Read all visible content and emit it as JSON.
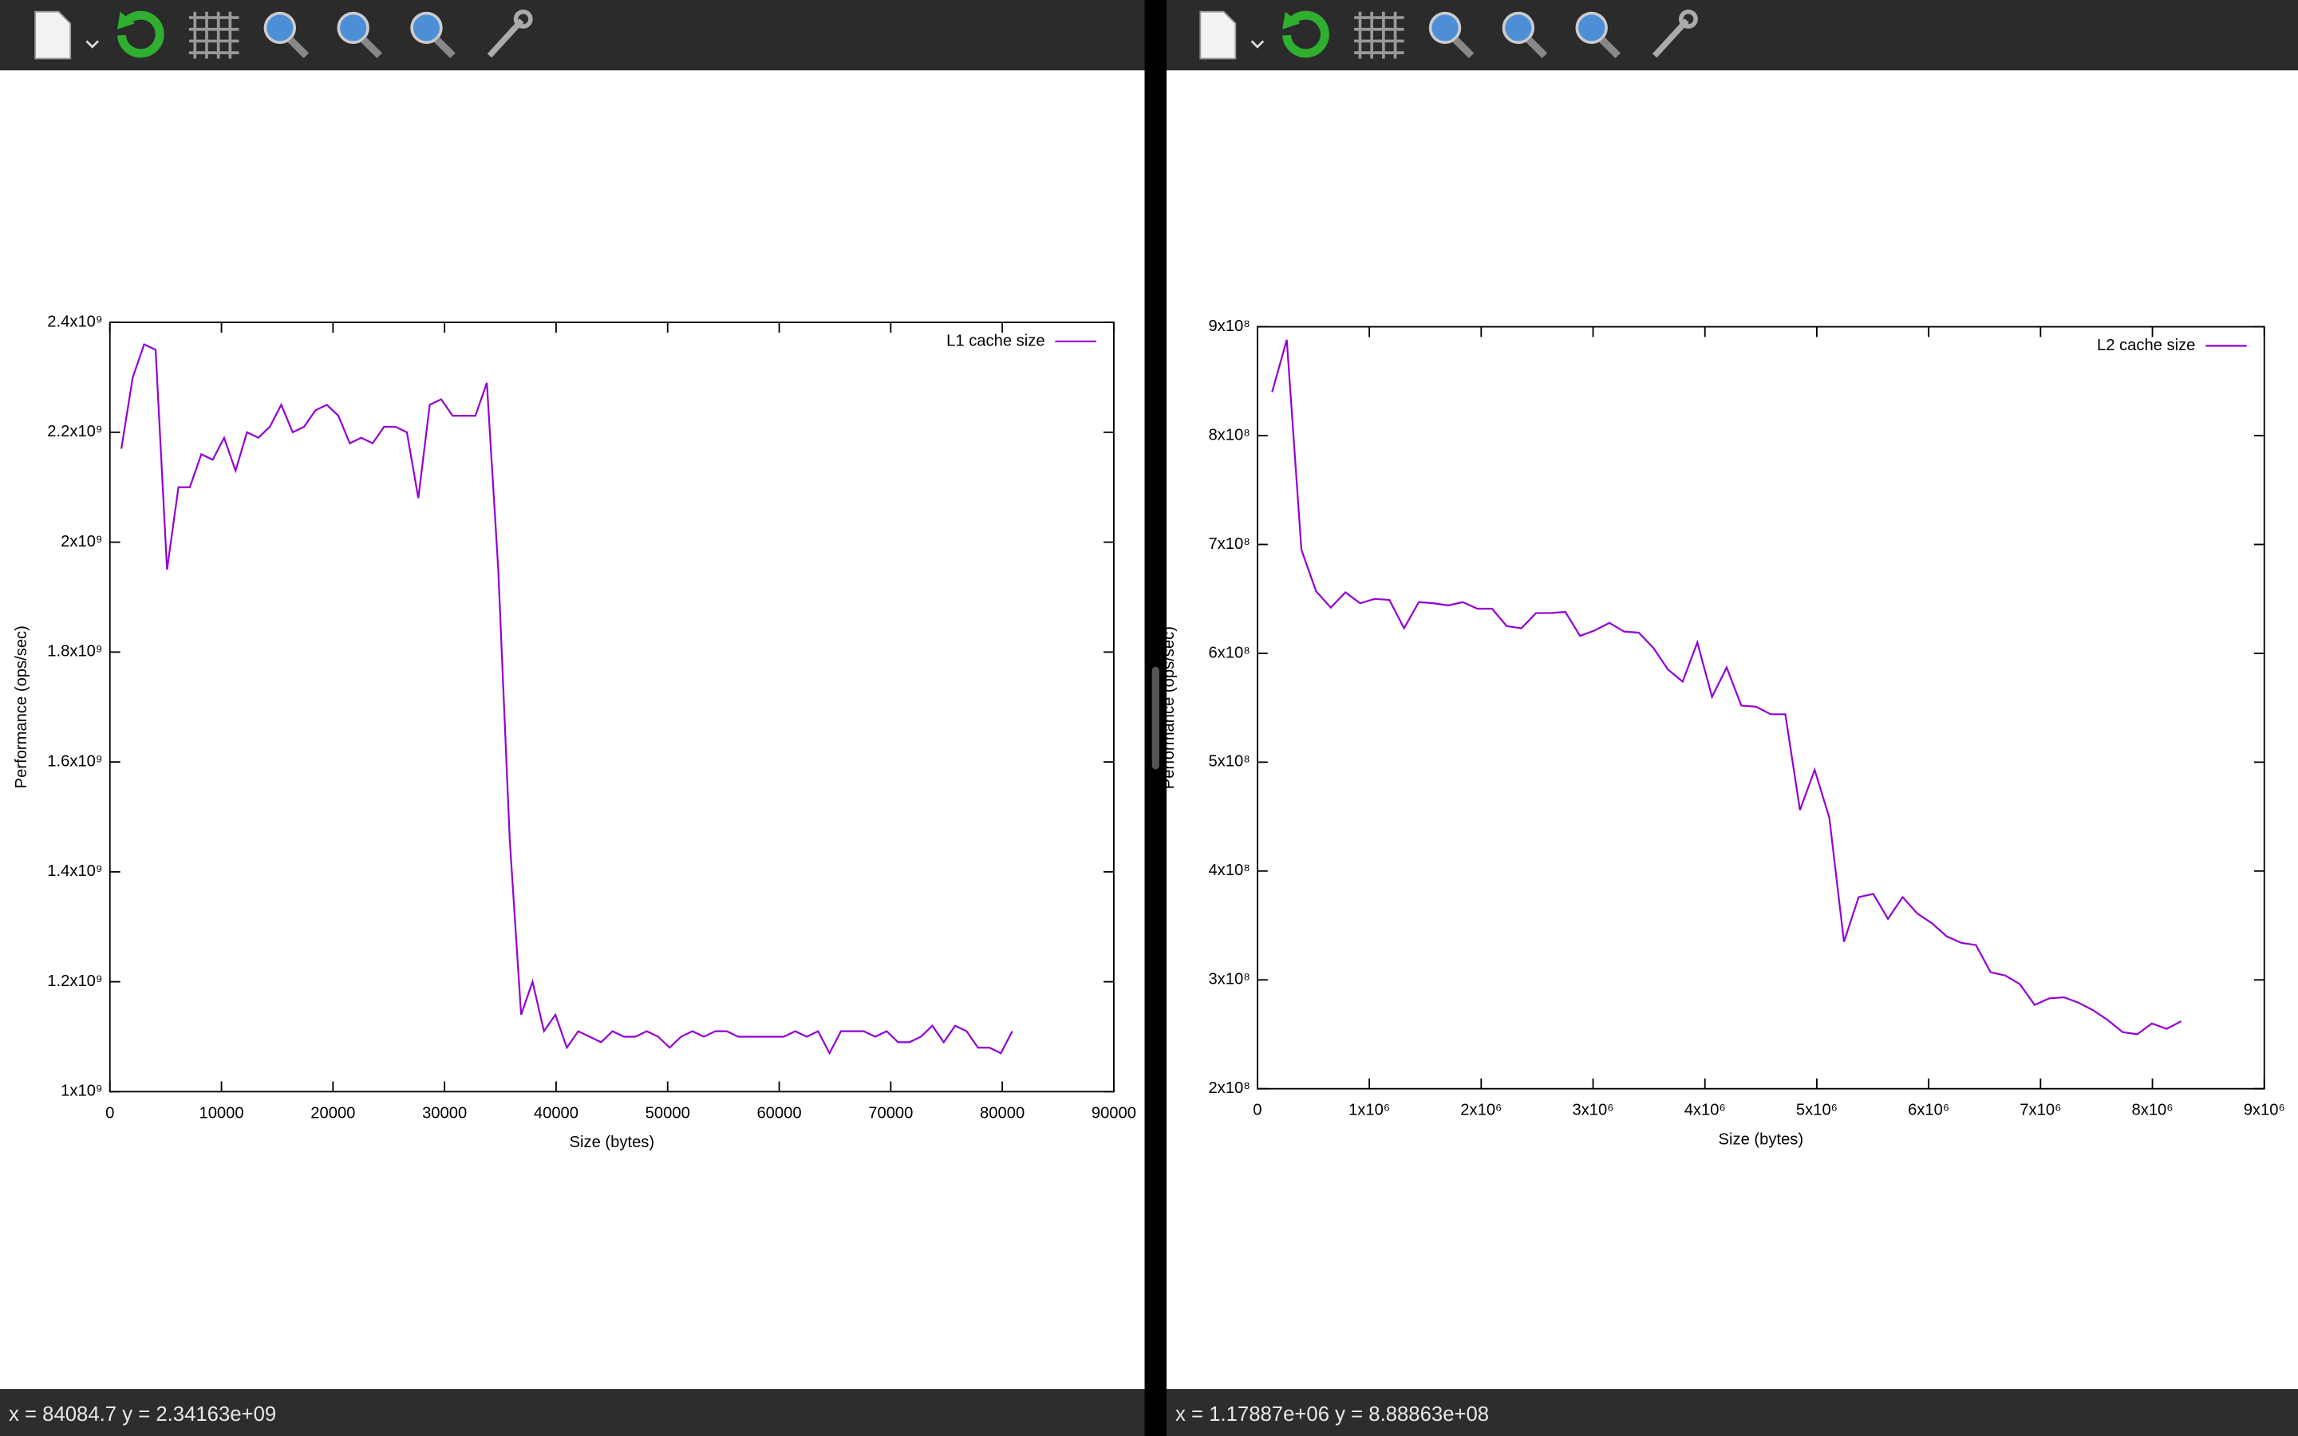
{
  "chart_data": [
    {
      "type": "line",
      "xlabel": "Size (bytes)",
      "ylabel": "Performance (ops/sec)",
      "x": [
        1024,
        2048,
        3072,
        4096,
        5120,
        6144,
        7168,
        8192,
        9216,
        10240,
        11264,
        12288,
        13312,
        14336,
        15360,
        16384,
        17408,
        18432,
        19456,
        20480,
        21504,
        22528,
        23552,
        24576,
        25600,
        26624,
        27648,
        28672,
        29696,
        30720,
        31744,
        32768,
        33792,
        34816,
        35840,
        36864,
        37888,
        38912,
        39936,
        40960,
        41984,
        43008,
        44032,
        45056,
        46080,
        47104,
        48128,
        49152,
        50176,
        51200,
        52224,
        53248,
        54272,
        55296,
        56320,
        57344,
        58368,
        59392,
        60416,
        61440,
        62464,
        63488,
        64512,
        65536,
        66560,
        67584,
        68608,
        69632,
        70656,
        71680,
        72704,
        73728,
        74752,
        75776,
        76800,
        77824,
        78848,
        79872,
        80896
      ],
      "series": [
        {
          "name": "L1 cache size",
          "color": "#9400d3",
          "values": [
            2170000000.0,
            2300000000.0,
            2360000000.0,
            2350000000.0,
            1950000000.0,
            2100000000.0,
            2100000000.0,
            2160000000.0,
            2150000000.0,
            2190000000.0,
            2130000000.0,
            2200000000.0,
            2190000000.0,
            2210000000.0,
            2250000000.0,
            2200000000.0,
            2210000000.0,
            2240000000.0,
            2250000000.0,
            2230000000.0,
            2180000000.0,
            2190000000.0,
            2180000000.0,
            2210000000.0,
            2210000000.0,
            2200000000.0,
            2080000000.0,
            2250000000.0,
            2260000000.0,
            2230000000.0,
            2230000000.0,
            2230000000.0,
            2290000000.0,
            1950000000.0,
            1460000000.0,
            1140000000.0,
            1200000000.0,
            1110000000.0,
            1140000000.0,
            1080000000.0,
            1110000000.0,
            1100000000.0,
            1090000000.0,
            1110000000.0,
            1100000000.0,
            1100000000.0,
            1110000000.0,
            1100000000.0,
            1080000000.0,
            1100000000.0,
            1110000000.0,
            1100000000.0,
            1110000000.0,
            1110000000.0,
            1100000000.0,
            1100000000.0,
            1100000000.0,
            1100000000.0,
            1100000000.0,
            1110000000.0,
            1100000000.0,
            1110000000.0,
            1070000000.0,
            1110000000.0,
            1110000000.0,
            1110000000.0,
            1100000000.0,
            1110000000.0,
            1090000000.0,
            1090000000.0,
            1100000000.0,
            1120000000.0,
            1090000000.0,
            1120000000.0,
            1110000000.0,
            1080000000.0,
            1080000000.0,
            1070000000.0,
            1110000000.0
          ]
        }
      ],
      "xlim": [
        0,
        90000
      ],
      "xticks": [
        0,
        10000,
        20000,
        30000,
        40000,
        50000,
        60000,
        70000,
        80000,
        90000
      ],
      "ylim": [
        1000000000.0,
        2400000000.0
      ],
      "yticks": [
        {
          "value": 1000000000.0,
          "label": "1x10⁹"
        },
        {
          "value": 1200000000.0,
          "label": "1.2x10⁹"
        },
        {
          "value": 1400000000.0,
          "label": "1.4x10⁹"
        },
        {
          "value": 1600000000.0,
          "label": "1.6x10⁹"
        },
        {
          "value": 1800000000.0,
          "label": "1.8x10⁹"
        },
        {
          "value": 2000000000.0,
          "label": "2x10⁹"
        },
        {
          "value": 2200000000.0,
          "label": "2.2x10⁹"
        },
        {
          "value": 2400000000.0,
          "label": "2.4x10⁹"
        }
      ],
      "legend": "top-right",
      "grid": false
    },
    {
      "type": "line",
      "xlabel": "Size (bytes)",
      "ylabel": "Performance (ops/sec)",
      "x": [
        131072,
        262144,
        393216,
        524288,
        655360,
        786432,
        917504,
        1048576,
        1179648,
        1310720,
        1441792,
        1572864,
        1703936,
        1835008,
        1966080,
        2097152,
        2228224,
        2359296,
        2490368,
        2621440,
        2752512,
        2883584,
        3014656,
        3145728,
        3276800,
        3407872,
        3538944,
        3670016,
        3801088,
        3932160,
        4063232,
        4194304,
        4325376,
        4456448,
        4587520,
        4718592,
        4849664,
        4980736,
        5111808,
        5242880,
        5373952,
        5505024,
        5636096,
        5767168,
        5898240,
        6029312,
        6160384,
        6291456,
        6422528,
        6553600,
        6684672,
        6815744,
        6946816,
        7077888,
        7208960,
        7340032,
        7471104,
        7602176,
        7733248,
        7864320,
        7995392,
        8126464,
        8257536
      ],
      "series": [
        {
          "name": "L2 cache size",
          "color": "#9400d3",
          "values": [
            840000000.0,
            888000000.0,
            695000000.0,
            657000000.0,
            642000000.0,
            656000000.0,
            646000000.0,
            650000000.0,
            649000000.0,
            623000000.0,
            647000000.0,
            646000000.0,
            644000000.0,
            647000000.0,
            641000000.0,
            641000000.0,
            625000000.0,
            623000000.0,
            637000000.0,
            637000000.0,
            638000000.0,
            616000000.0,
            621000000.0,
            628000000.0,
            620000000.0,
            619000000.0,
            605000000.0,
            585000000.0,
            574000000.0,
            610000000.0,
            560000000.0,
            587000000.0,
            552000000.0,
            551000000.0,
            544000000.0,
            544000000.0,
            456000000.0,
            493000000.0,
            449000000.0,
            335000000.0,
            376000000.0,
            379000000.0,
            356000000.0,
            376000000.0,
            361000000.0,
            352000000.0,
            340000000.0,
            334000000.0,
            332000000.0,
            307000000.0,
            304000000.0,
            296000000.0,
            277000000.0,
            283000000.0,
            284000000.0,
            279000000.0,
            272000000.0,
            263000000.0,
            252000000.0,
            250000000.0,
            260000000.0,
            255000000.0,
            262000000.0
          ]
        }
      ],
      "xlim": [
        0,
        9000000.0
      ],
      "xticks": [
        0,
        {
          "value": 1000000.0,
          "label": "1x10⁶"
        },
        {
          "value": 2000000.0,
          "label": "2x10⁶"
        },
        {
          "value": 3000000.0,
          "label": "3x10⁶"
        },
        {
          "value": 4000000.0,
          "label": "4x10⁶"
        },
        {
          "value": 5000000.0,
          "label": "5x10⁶"
        },
        {
          "value": 6000000.0,
          "label": "6x10⁶"
        },
        {
          "value": 7000000.0,
          "label": "7x10⁶"
        },
        {
          "value": 8000000.0,
          "label": "8x10⁶"
        },
        {
          "value": 9000000.0,
          "label": "9x10⁶"
        }
      ],
      "ylim": [
        200000000.0,
        900000000.0
      ],
      "yticks": [
        {
          "value": 200000000.0,
          "label": "2x10⁸"
        },
        {
          "value": 300000000.0,
          "label": "3x10⁸"
        },
        {
          "value": 400000000.0,
          "label": "4x10⁸"
        },
        {
          "value": 500000000.0,
          "label": "5x10⁸"
        },
        {
          "value": 600000000.0,
          "label": "6x10⁸"
        },
        {
          "value": 700000000.0,
          "label": "7x10⁸"
        },
        {
          "value": 800000000.0,
          "label": "8x10⁸"
        },
        {
          "value": 900000000.0,
          "label": "9x10⁸"
        }
      ],
      "legend": "top-right",
      "grid": false
    }
  ],
  "status_bars": [
    "x = 84084.7 y = 2.34163e+09",
    "x = 1.17887e+06 y = 8.88863e+08"
  ]
}
